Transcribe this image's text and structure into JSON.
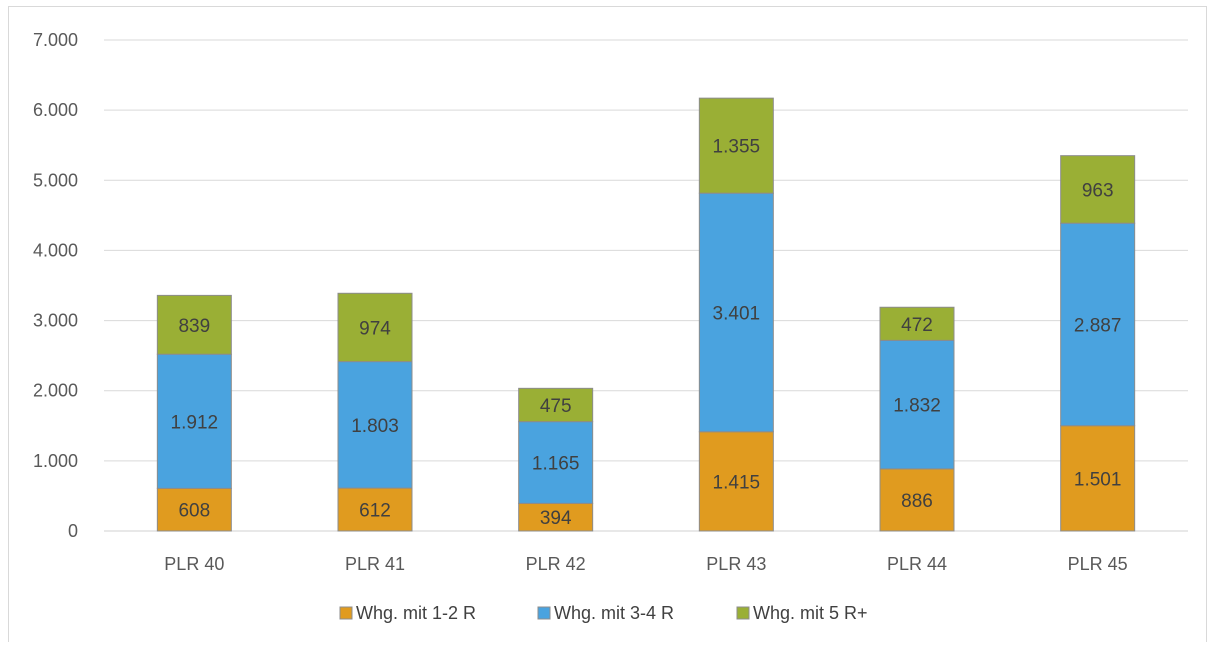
{
  "chart_data": {
    "type": "bar",
    "stacked": true,
    "categories": [
      "PLR 40",
      "PLR 41",
      "PLR 42",
      "PLR 43",
      "PLR 44",
      "PLR 45"
    ],
    "series": [
      {
        "name": "Whg. mit 1-2 R",
        "color": "#E09B1F",
        "values": [
          608,
          612,
          394,
          1415,
          886,
          1501
        ],
        "labels": [
          "608",
          "612",
          "394",
          "1.415",
          "886",
          "1.501"
        ]
      },
      {
        "name": "Whg. mit 3-4 R",
        "color": "#4AA3DF",
        "values": [
          1912,
          1803,
          1165,
          3401,
          1832,
          2887
        ],
        "labels": [
          "1.912",
          "1.803",
          "1.165",
          "3.401",
          "1.832",
          "2.887"
        ]
      },
      {
        "name": "Whg. mit 5 R+",
        "color": "#9AAF35",
        "values": [
          839,
          974,
          475,
          1355,
          472,
          963
        ],
        "labels": [
          "839",
          "974",
          "475",
          "1.355",
          "472",
          "963"
        ]
      }
    ],
    "yticks": [
      0,
      1000,
      2000,
      3000,
      4000,
      5000,
      6000,
      7000
    ],
    "ytick_labels": [
      "0",
      "1.000",
      "2.000",
      "3.000",
      "4.000",
      "5.000",
      "6.000",
      "7.000"
    ],
    "ylim": [
      0,
      7000
    ],
    "grid": true,
    "legend_position": "bottom",
    "title": "",
    "xlabel": "",
    "ylabel": ""
  }
}
